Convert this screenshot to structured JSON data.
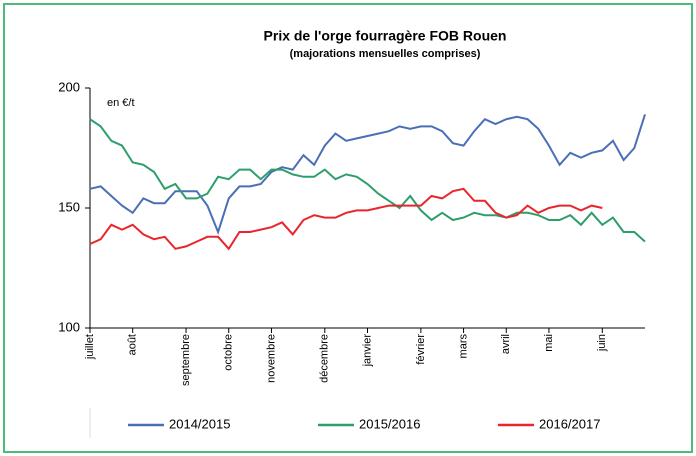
{
  "chart_data": {
    "type": "line",
    "title": "Prix de l'orge fourragère FOB Rouen",
    "subtitle": "(majorations mensuelles comprises)",
    "y_label": "en €/t",
    "categories": [
      "juillet",
      null,
      null,
      null,
      "août",
      null,
      null,
      null,
      null,
      "septembre",
      null,
      null,
      null,
      "octobre",
      null,
      null,
      null,
      "novembre",
      null,
      null,
      null,
      null,
      "décembre",
      null,
      null,
      null,
      "janvier",
      null,
      null,
      null,
      null,
      "février",
      null,
      null,
      null,
      "mars",
      null,
      null,
      null,
      "avril",
      null,
      null,
      null,
      "mai",
      null,
      null,
      null,
      null,
      "juin",
      null,
      null,
      null,
      null
    ],
    "series": [
      {
        "name": "2014/2015",
        "color": "#4a6fb5",
        "values": [
          158,
          159,
          155,
          151,
          148,
          154,
          152,
          152,
          157,
          157,
          157,
          151,
          140,
          154,
          159,
          159,
          160,
          165,
          167,
          166,
          172,
          168,
          176,
          181,
          178,
          179,
          180,
          181,
          182,
          184,
          183,
          184,
          184,
          182,
          177,
          176,
          182,
          187,
          185,
          187,
          188,
          187,
          183,
          176,
          168,
          173,
          171,
          173,
          174,
          178,
          170,
          175,
          189
        ]
      },
      {
        "name": "2015/2016",
        "color": "#2e9e6a",
        "values": [
          187,
          184,
          178,
          176,
          169,
          168,
          165,
          158,
          160,
          154,
          154,
          156,
          163,
          162,
          166,
          166,
          162,
          166,
          166,
          164,
          163,
          163,
          166,
          162,
          164,
          163,
          160,
          156,
          153,
          150,
          155,
          149,
          145,
          148,
          145,
          146,
          148,
          147,
          147,
          146,
          148,
          148,
          147,
          145,
          145,
          147,
          143,
          148,
          143,
          146,
          140,
          140,
          136
        ]
      },
      {
        "name": "2016/2017",
        "color": "#e8262b",
        "values": [
          135,
          137,
          143,
          141,
          143,
          139,
          137,
          138,
          133,
          134,
          136,
          138,
          138,
          133,
          140,
          140,
          141,
          142,
          144,
          139,
          145,
          147,
          146,
          146,
          148,
          149,
          149,
          150,
          151,
          151,
          151,
          151,
          155,
          154,
          157,
          158,
          153,
          153,
          148,
          146,
          147,
          151,
          148,
          150,
          151,
          151,
          149,
          151,
          150,
          null,
          null,
          null,
          null
        ]
      }
    ],
    "ylim": [
      100,
      200
    ],
    "yticks": [
      100,
      150,
      200
    ],
    "grid": false,
    "legend": "bottom"
  }
}
